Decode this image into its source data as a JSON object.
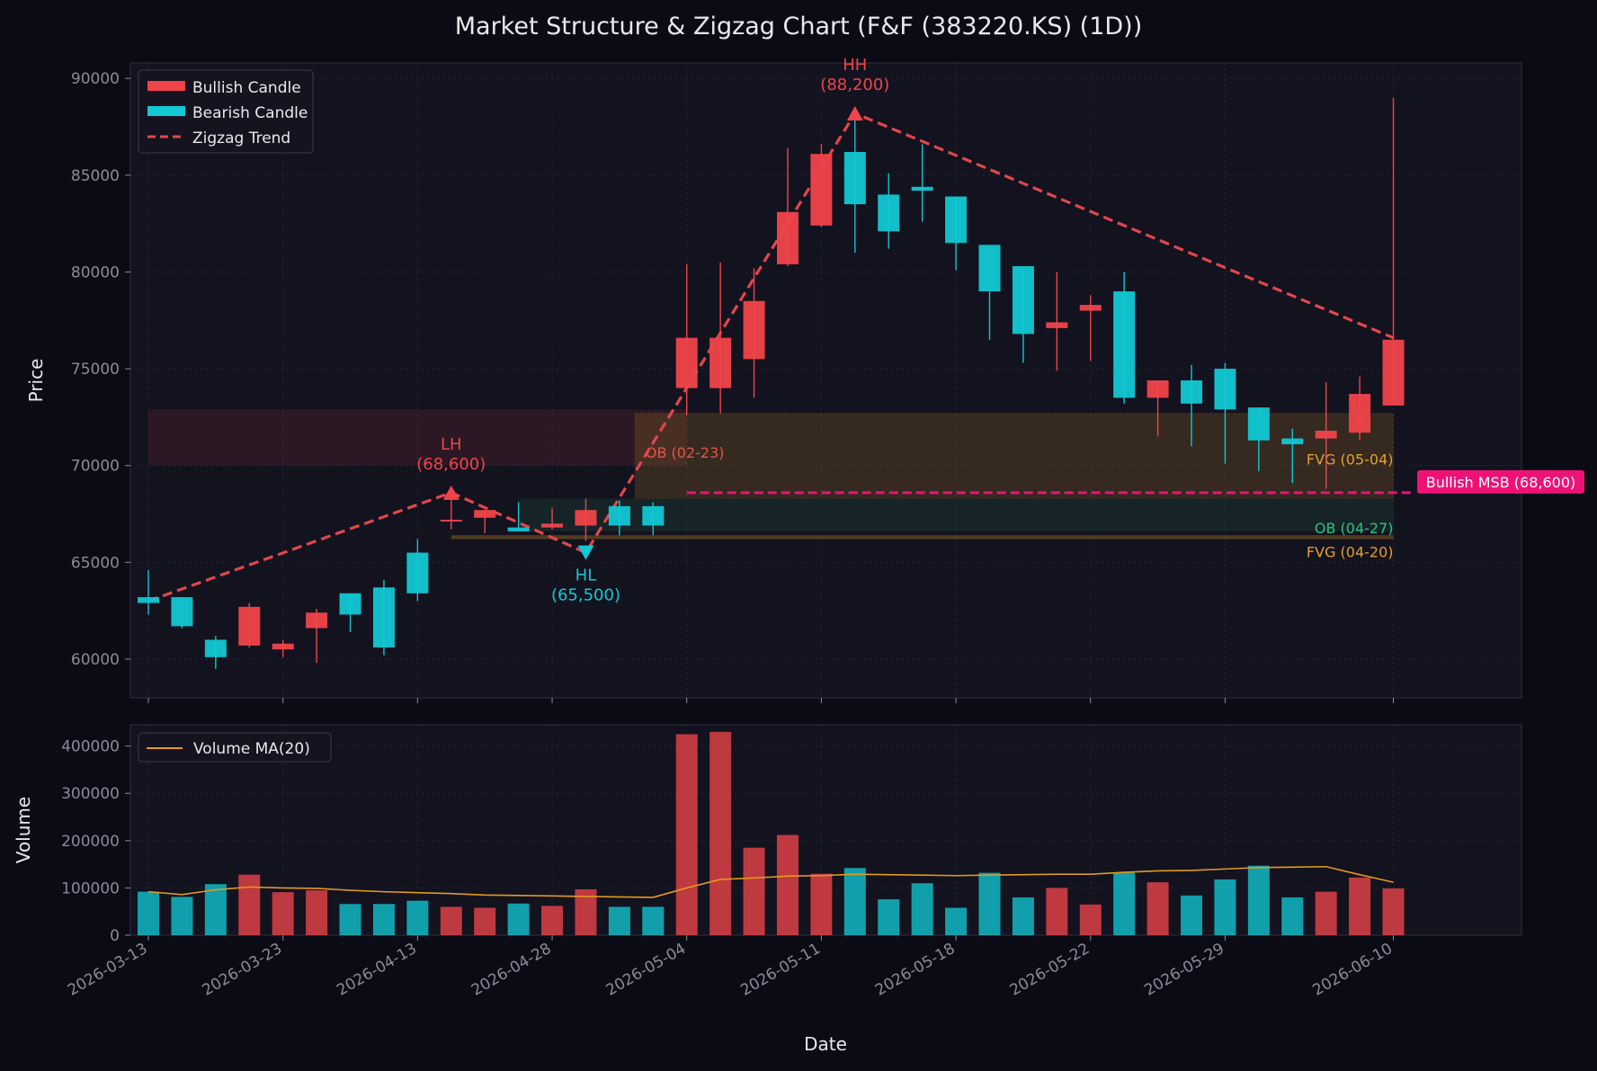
{
  "title": "Market Structure & Zigzag Chart (F&F (383220.KS) (1D))",
  "colors": {
    "background": "#0b0b16",
    "panel": "#13121f",
    "bullish": "#f0444a",
    "bearish": "#11c8d3",
    "zigzag": "#e0474c",
    "volume_ma": "#e39a1e",
    "msb": "#ee1277",
    "ob_bear": "#e0474c",
    "ob_bull": "#2fc27f",
    "fvg": "#e3a12b",
    "text_muted": "#8a8a9a",
    "text": "#e8e8ee"
  },
  "chart_data": [
    {
      "type": "candlestick",
      "name": "price",
      "ylabel": "Price",
      "xlabel": "Date",
      "ylim": [
        58000,
        90800
      ],
      "yticks": [
        60000,
        65000,
        70000,
        75000,
        80000,
        85000,
        90000
      ],
      "grid": true,
      "legend": {
        "placement": "top-left",
        "entries": [
          "Bullish Candle",
          "Bearish Candle",
          "Zigzag Trend"
        ]
      },
      "x_ticks": [
        {
          "i": 0,
          "label": "2026-03-13"
        },
        {
          "i": 4,
          "label": "2026-03-23"
        },
        {
          "i": 8,
          "label": "2026-04-13"
        },
        {
          "i": 12,
          "label": "2026-04-28"
        },
        {
          "i": 16,
          "label": "2026-05-04"
        },
        {
          "i": 20,
          "label": "2026-05-11"
        },
        {
          "i": 24,
          "label": "2026-05-18"
        },
        {
          "i": 28,
          "label": "2026-05-22"
        },
        {
          "i": 32,
          "label": "2026-05-29"
        },
        {
          "i": 37,
          "label": "2026-06-10"
        }
      ],
      "candles": [
        {
          "open": 63200,
          "high": 64600,
          "low": 62300,
          "close": 62900
        },
        {
          "open": 63200,
          "high": 63200,
          "low": 61600,
          "close": 61700
        },
        {
          "open": 61000,
          "high": 61200,
          "low": 59500,
          "close": 60100
        },
        {
          "open": 60700,
          "high": 62900,
          "low": 60600,
          "close": 62700
        },
        {
          "open": 60500,
          "high": 61000,
          "low": 60100,
          "close": 60800
        },
        {
          "open": 61600,
          "high": 62600,
          "low": 59800,
          "close": 62400
        },
        {
          "open": 63400,
          "high": 63400,
          "low": 61400,
          "close": 62300
        },
        {
          "open": 63700,
          "high": 64100,
          "low": 60200,
          "close": 60600
        },
        {
          "open": 65500,
          "high": 66200,
          "low": 63000,
          "close": 63400
        },
        {
          "open": 67200,
          "high": 68400,
          "low": 66700,
          "close": 67200
        },
        {
          "open": 67300,
          "high": 67700,
          "low": 66500,
          "close": 67700
        },
        {
          "open": 66800,
          "high": 68100,
          "low": 66600,
          "close": 66600
        },
        {
          "open": 66800,
          "high": 67800,
          "low": 66700,
          "close": 67000
        },
        {
          "open": 66900,
          "high": 68300,
          "low": 66100,
          "close": 67700
        },
        {
          "open": 67900,
          "high": 68200,
          "low": 66400,
          "close": 66900
        },
        {
          "open": 67900,
          "high": 68100,
          "low": 66400,
          "close": 66900
        },
        {
          "open": 74000,
          "high": 80400,
          "low": 72600,
          "close": 76600
        },
        {
          "open": 74000,
          "high": 80500,
          "low": 72700,
          "close": 76600
        },
        {
          "open": 75500,
          "high": 80200,
          "low": 73500,
          "close": 78500
        },
        {
          "open": 80400,
          "high": 86400,
          "low": 80300,
          "close": 83100
        },
        {
          "open": 82400,
          "high": 86600,
          "low": 82300,
          "close": 86100
        },
        {
          "open": 86200,
          "high": 88300,
          "low": 81000,
          "close": 83500
        },
        {
          "open": 84000,
          "high": 85100,
          "low": 81200,
          "close": 82100
        },
        {
          "open": 84400,
          "high": 86600,
          "low": 82600,
          "close": 84200
        },
        {
          "open": 83900,
          "high": 83900,
          "low": 80100,
          "close": 81500
        },
        {
          "open": 81400,
          "high": 81400,
          "low": 76500,
          "close": 79000
        },
        {
          "open": 80300,
          "high": 80300,
          "low": 75300,
          "close": 76800
        },
        {
          "open": 77100,
          "high": 80000,
          "low": 74900,
          "close": 77400
        },
        {
          "open": 78000,
          "high": 78800,
          "low": 75400,
          "close": 78300
        },
        {
          "open": 79000,
          "high": 80000,
          "low": 73200,
          "close": 73500
        },
        {
          "open": 73500,
          "high": 74400,
          "low": 71500,
          "close": 74400
        },
        {
          "open": 74400,
          "high": 75200,
          "low": 71000,
          "close": 73200
        },
        {
          "open": 75000,
          "high": 75300,
          "low": 70100,
          "close": 72900
        },
        {
          "open": 73000,
          "high": 73000,
          "low": 69700,
          "close": 71300
        },
        {
          "open": 71400,
          "high": 71900,
          "low": 69100,
          "close": 71100
        },
        {
          "open": 71400,
          "high": 74300,
          "low": 68800,
          "close": 71800
        },
        {
          "open": 71700,
          "high": 74600,
          "low": 71300,
          "close": 73700
        },
        {
          "open": 73100,
          "high": 89000,
          "low": 73100,
          "close": 76500
        }
      ],
      "zigzag": [
        {
          "i": 0,
          "price": 63000
        },
        {
          "i": 9,
          "price": 68600
        },
        {
          "i": 13,
          "price": 65500
        },
        {
          "i": 21,
          "price": 88200
        },
        {
          "i": 37,
          "price": 76600
        }
      ],
      "pivots": [
        {
          "i": 9,
          "price": 68600,
          "label": "LH",
          "value": "(68,600)",
          "dir": "up"
        },
        {
          "i": 13,
          "price": 65500,
          "label": "HL",
          "value": "(65,500)",
          "dir": "down"
        },
        {
          "i": 21,
          "price": 88200,
          "label": "HH",
          "value": "(88,200)",
          "dir": "up"
        }
      ],
      "zones": [
        {
          "kind": "ob_bear",
          "i0": 0,
          "i1": 16,
          "low": 70000,
          "high": 72900,
          "label": ""
        },
        {
          "kind": "ob_bear_tag",
          "i0": 16,
          "i1": 16,
          "low": 0,
          "high": 0,
          "label": "OB (02-23)"
        },
        {
          "kind": "fvg",
          "i0": 15,
          "i1": 37,
          "low": 68300,
          "high": 72700,
          "label": "FVG (05-04)"
        },
        {
          "kind": "ob_bull",
          "i0": 11,
          "i1": 37,
          "low": 66600,
          "high": 68300,
          "label": "OB (04-27)"
        },
        {
          "kind": "fvg_line",
          "i0": 9,
          "i1": 37,
          "low": 66200,
          "high": 66400,
          "label": "FVG (04-20)"
        }
      ],
      "msb": {
        "i0": 16,
        "i1": 38,
        "price": 68600,
        "label": "Bullish MSB (68,600)"
      }
    },
    {
      "type": "bar",
      "name": "volume",
      "ylabel": "Volume",
      "ylim": [
        0,
        445000
      ],
      "yticks": [
        0,
        100000,
        200000,
        300000,
        400000
      ],
      "legend": {
        "placement": "top-left",
        "entries": [
          "Volume MA(20)"
        ]
      },
      "values": [
        92000,
        81000,
        108000,
        128000,
        91000,
        95000,
        66000,
        66000,
        73000,
        60000,
        58000,
        67000,
        62000,
        97000,
        60000,
        60000,
        425000,
        430000,
        185000,
        212000,
        130000,
        142000,
        76000,
        110000,
        58000,
        132000,
        80000,
        100000,
        65000,
        132000,
        112000,
        84000,
        118000,
        147000,
        80000,
        92000,
        122000,
        99000
      ],
      "ma20": [
        92000,
        86000,
        96000,
        102000,
        100000,
        99000,
        95000,
        92000,
        90000,
        88000,
        85000,
        84000,
        83000,
        82000,
        81000,
        80000,
        100000,
        118000,
        121000,
        125000,
        126000,
        129000,
        128000,
        127000,
        126000,
        127000,
        128000,
        129000,
        129000,
        133000,
        136000,
        137000,
        140000,
        143000,
        144000,
        145000,
        128000,
        112000
      ]
    }
  ]
}
